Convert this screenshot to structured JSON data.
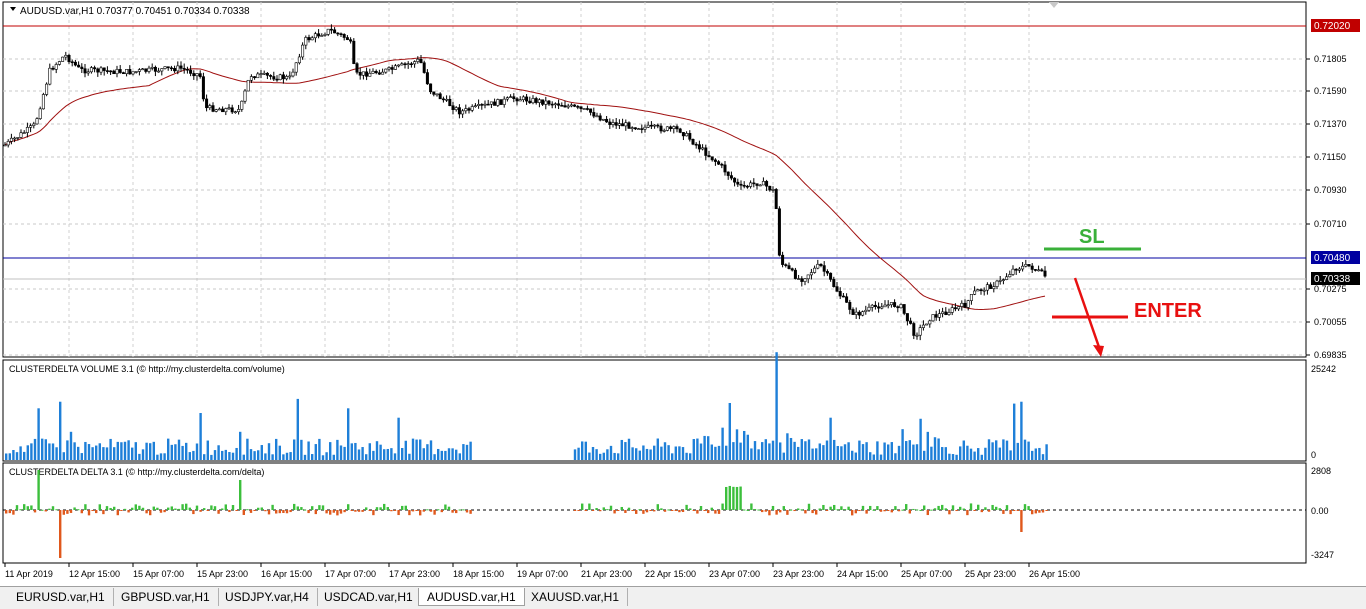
{
  "chart": {
    "symbol_header": "AUDUSD.var,H1  0.70377 0.70451 0.70334 0.70338",
    "price_labels": [
      "0.71805",
      "0.71590",
      "0.71370",
      "0.71150",
      "0.70930",
      "0.70710",
      "0.70275",
      "0.70055",
      "0.69835"
    ],
    "level_red": "0.72020",
    "level_blue": "0.70480",
    "current_price": "0.70338",
    "annotation_sl": "SL",
    "annotation_enter": "ENTER",
    "colors": {
      "red_line": "#c00000",
      "blue_line": "#0000a0",
      "sl": "#3ab03a",
      "enter": "#e81010",
      "ma": "#a01010",
      "volume": "#1e7fd8",
      "delta_pos": "#3cbf3c",
      "delta_neg": "#e0581c"
    }
  },
  "volume_panel": {
    "title": "CLUSTERDELTA VOLUME 3.1 (© http://my.clusterdelta.com/volume)",
    "max_label": "25242",
    "min_label": "0"
  },
  "delta_panel": {
    "title": "CLUSTERDELTA DELTA 3.1 (© http://my.clusterdelta.com/delta)",
    "max_label": "2808",
    "zero_label": "0.00",
    "min_label": "-3247"
  },
  "time_axis": [
    "11 Apr 2019",
    "12 Apr 15:00",
    "15 Apr 07:00",
    "15 Apr 23:00",
    "16 Apr 15:00",
    "17 Apr 07:00",
    "17 Apr 23:00",
    "18 Apr 15:00",
    "19 Apr 07:00",
    "21 Apr 23:00",
    "22 Apr 15:00",
    "23 Apr 07:00",
    "23 Apr 23:00",
    "24 Apr 15:00",
    "25 Apr 07:00",
    "25 Apr 23:00",
    "26 Apr 15:00"
  ],
  "tabs": [
    "EURUSD.var,H1",
    "GBPUSD.var,H1",
    "USDJPY.var,H4",
    "USDCAD.var,H1",
    "AUDUSD.var,H1",
    "XAUUSD.var,H1"
  ],
  "active_tab": "AUDUSD.var,H1"
}
